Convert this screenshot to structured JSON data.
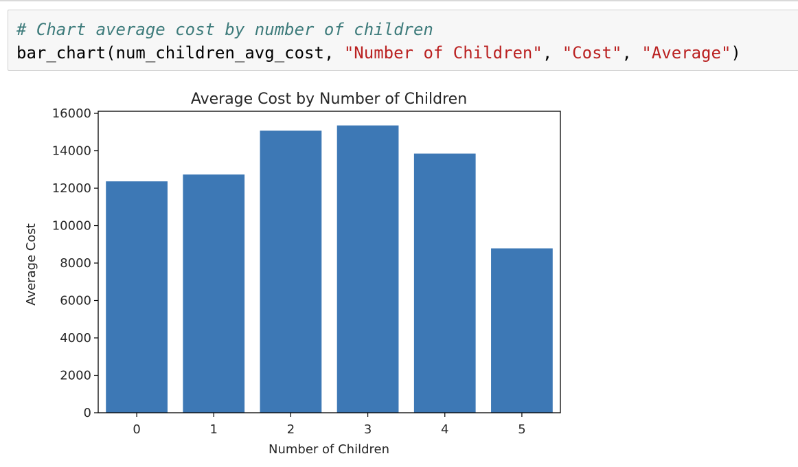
{
  "code_cell": {
    "comment": "# Chart average cost by number of children",
    "call": {
      "func": "bar_chart",
      "arg1": "num_children_avg_cost",
      "arg2": "\"Number of Children\"",
      "arg3": "\"Cost\"",
      "arg4": "\"Average\""
    }
  },
  "chart_data": {
    "type": "bar",
    "title": "Average Cost by Number of Children",
    "xlabel": "Number of Children",
    "ylabel": "Average Cost",
    "categories": [
      "0",
      "1",
      "2",
      "3",
      "4",
      "5"
    ],
    "values": [
      12366,
      12731,
      15074,
      15355,
      13851,
      8786
    ],
    "ylim": [
      0,
      16112
    ],
    "yticks": [
      0,
      2000,
      4000,
      6000,
      8000,
      10000,
      12000,
      14000,
      16000
    ],
    "bar_color": "#3d78b5",
    "grid": false
  }
}
